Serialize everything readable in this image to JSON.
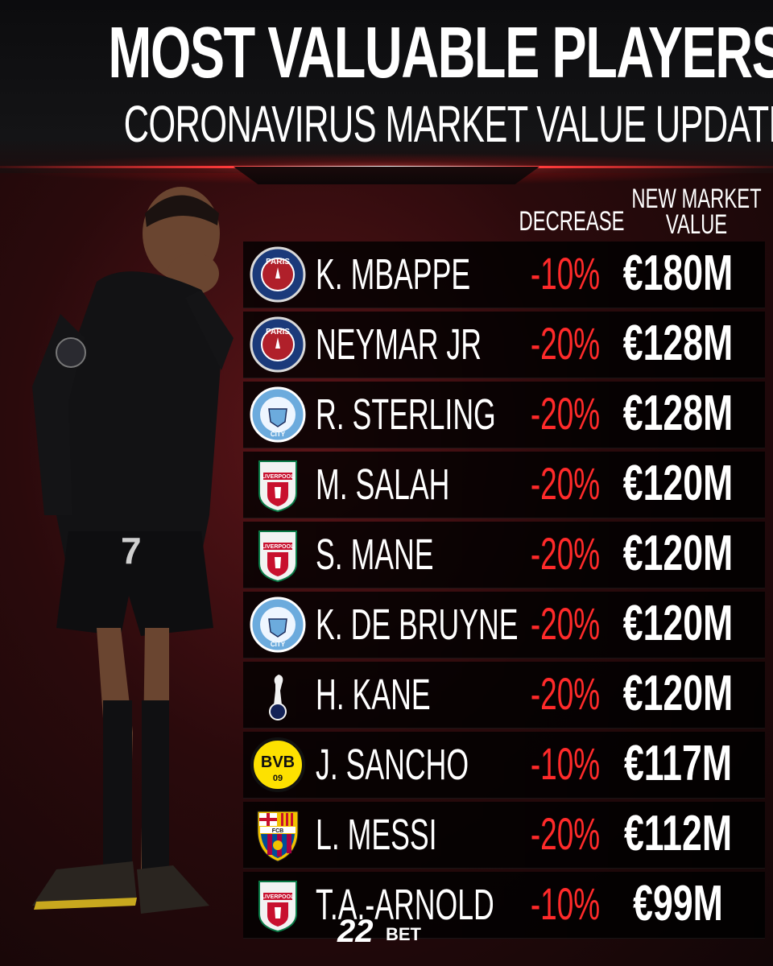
{
  "header": {
    "title": "MOST VALUABLE PLAYERS",
    "subtitle": "CORONAVIRUS MARKET VALUE UPDATE"
  },
  "columns": {
    "decrease": "DECREASE",
    "value_line1": "NEW MARKET",
    "value_line2": "VALUE"
  },
  "players": [
    {
      "club": "psg-crest-icon",
      "name": "K. MBAPPE",
      "decrease": "-10%",
      "value": "€180M"
    },
    {
      "club": "psg-crest-icon",
      "name": "NEYMAR JR",
      "decrease": "-20%",
      "value": "€128M"
    },
    {
      "club": "man-city-crest-icon",
      "name": "R. STERLING",
      "decrease": "-20%",
      "value": "€128M"
    },
    {
      "club": "liverpool-crest-icon",
      "name": "M. SALAH",
      "decrease": "-20%",
      "value": "€120M"
    },
    {
      "club": "liverpool-crest-icon",
      "name": "S. MANE",
      "decrease": "-20%",
      "value": "€120M"
    },
    {
      "club": "man-city-crest-icon",
      "name": "K. DE BRUYNE",
      "decrease": "-20%",
      "value": "€120M"
    },
    {
      "club": "tottenham-crest-icon",
      "name": "H. KANE",
      "decrease": "-20%",
      "value": "€120M"
    },
    {
      "club": "bvb-crest-icon",
      "name": "J. SANCHO",
      "decrease": "-10%",
      "value": "€117M"
    },
    {
      "club": "barcelona-crest-icon",
      "name": "L. MESSI",
      "decrease": "-20%",
      "value": "€112M"
    },
    {
      "club": "liverpool-crest-icon",
      "name": "T.A.-ARNOLD",
      "decrease": "-10%",
      "value": "€99M"
    }
  ],
  "brand": {
    "number": "22",
    "text": "BET"
  },
  "crest_labels": {
    "psg": "PARIS",
    "city": "CITY",
    "liverpool": "LIVERPOOL",
    "bvb": "BVB",
    "bvb_year": "09",
    "fcb": "FCB"
  },
  "colors": {
    "accent_red": "#ff2a2a",
    "row_bg": "#000000",
    "psg_blue": "#1b3a7a",
    "city_blue": "#6cabdd",
    "liverpool_red": "#c8102e",
    "bvb_yellow": "#fde100",
    "barca_blue": "#004d98",
    "barca_red": "#a50044"
  }
}
